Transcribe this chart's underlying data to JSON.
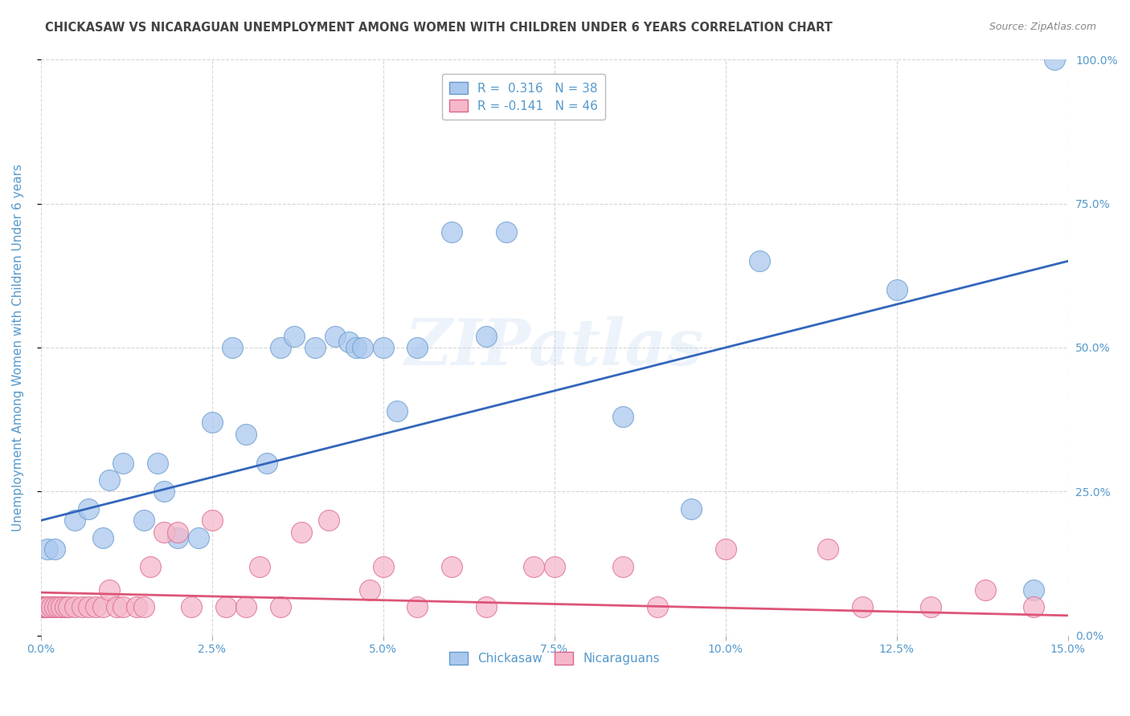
{
  "title": "CHICKASAW VS NICARAGUAN UNEMPLOYMENT AMONG WOMEN WITH CHILDREN UNDER 6 YEARS CORRELATION CHART",
  "source": "Source: ZipAtlas.com",
  "ylabel": "Unemployment Among Women with Children Under 6 years",
  "xlim": [
    0.0,
    15.0
  ],
  "ylim": [
    0.0,
    100.0
  ],
  "yticks_right": [
    0.0,
    25.0,
    50.0,
    75.0,
    100.0
  ],
  "ytick_labels_right": [
    "0.0%",
    "25.0%",
    "50.0%",
    "75.0%",
    "100.0%"
  ],
  "chickasaw_color": "#aac8ee",
  "nicaraguan_color": "#f5b8cb",
  "chickasaw_edge_color": "#6699cc",
  "nicaraguan_edge_color": "#dd6688",
  "chickasaw_line_color": "#3366bb",
  "nicaraguan_line_color": "#dd5577",
  "legend_label1": "R =  0.316   N = 38",
  "legend_label2": "R = -0.141   N = 46",
  "watermark_text": "ZIPatlas",
  "background_color": "#ffffff",
  "grid_color": "#cccccc",
  "axis_label_color": "#5599cc",
  "text_color": "#444444",
  "chick_line_x0": 0.0,
  "chick_line_y0": 20.0,
  "chick_line_x1": 15.0,
  "chick_line_y1": 65.0,
  "nica_line_x0": 0.0,
  "nica_line_y0": 7.5,
  "nica_line_x1": 15.0,
  "nica_line_y1": 3.5,
  "chickasaw_x": [
    0.05,
    0.1,
    0.15,
    0.2,
    0.3,
    0.5,
    0.7,
    0.9,
    1.0,
    1.2,
    1.5,
    1.7,
    1.8,
    2.0,
    2.3,
    2.5,
    2.8,
    3.0,
    3.5,
    4.0,
    4.3,
    4.5,
    4.6,
    4.7,
    5.0,
    5.2,
    5.5,
    6.0,
    6.8,
    8.5,
    9.5,
    10.5,
    12.5,
    14.5,
    14.8,
    3.3,
    3.7,
    6.5
  ],
  "chickasaw_y": [
    5,
    15,
    5,
    15,
    5,
    20,
    22,
    17,
    27,
    30,
    20,
    30,
    25,
    17,
    17,
    37,
    50,
    35,
    50,
    50,
    52,
    51,
    50,
    50,
    50,
    39,
    50,
    70,
    70,
    38,
    22,
    65,
    60,
    8,
    100,
    30,
    52,
    52
  ],
  "nicaraguan_x": [
    0.02,
    0.05,
    0.08,
    0.1,
    0.15,
    0.2,
    0.25,
    0.3,
    0.35,
    0.4,
    0.5,
    0.6,
    0.7,
    0.8,
    0.9,
    1.0,
    1.1,
    1.2,
    1.4,
    1.5,
    1.6,
    1.8,
    2.0,
    2.2,
    2.5,
    2.7,
    3.0,
    3.2,
    3.5,
    3.8,
    4.2,
    4.8,
    5.0,
    5.5,
    6.0,
    6.5,
    7.2,
    7.5,
    8.5,
    9.0,
    10.0,
    11.5,
    12.0,
    13.0,
    13.8,
    14.5
  ],
  "nicaraguan_y": [
    5,
    5,
    5,
    5,
    5,
    5,
    5,
    5,
    5,
    5,
    5,
    5,
    5,
    5,
    5,
    8,
    5,
    5,
    5,
    5,
    12,
    18,
    18,
    5,
    20,
    5,
    5,
    12,
    5,
    18,
    20,
    8,
    12,
    5,
    12,
    5,
    12,
    12,
    12,
    5,
    15,
    15,
    5,
    5,
    8,
    5
  ]
}
